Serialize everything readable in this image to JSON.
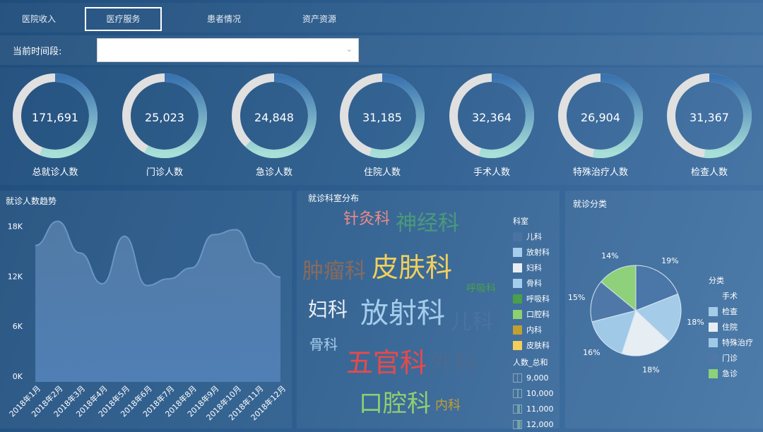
{
  "tabs": [
    {
      "label": "医院收入"
    },
    {
      "label": "医疗服务",
      "active": true
    },
    {
      "label": "患者情况"
    },
    {
      "label": "资产资源"
    }
  ],
  "filter": {
    "label": "当前时间段:",
    "value": ""
  },
  "kpis": [
    {
      "label": "总就诊人数",
      "value": "171,691",
      "fill": 0.56
    },
    {
      "label": "门诊人数",
      "value": "25,023",
      "fill": 0.58
    },
    {
      "label": "急诊人数",
      "value": "24,848",
      "fill": 0.62
    },
    {
      "label": "住院人数",
      "value": "31,185",
      "fill": 0.55
    },
    {
      "label": "手术人数",
      "value": "32,364",
      "fill": 0.55
    },
    {
      "label": "特殊治疗人数",
      "value": "26,904",
      "fill": 0.53
    },
    {
      "label": "检查人数",
      "value": "31,367",
      "fill": 0.52
    }
  ],
  "colors": {
    "ring_track": "#e0e0e0",
    "ring_start": "#3a73b0",
    "ring_end": "#a8e0d8",
    "area": "#4f7fb5"
  },
  "trend": {
    "title": "就诊人数趋势"
  },
  "chart_data": [
    {
      "type": "area",
      "title": "就诊人数趋势",
      "categories": [
        "2018年1月",
        "2018年2月",
        "2018年3月",
        "2018年4月",
        "2018年5月",
        "2018年6月",
        "2018年7月",
        "2018年8月",
        "2018年9月",
        "2018年10月",
        "2018年11月",
        "2018年12月"
      ],
      "values": [
        15700,
        18600,
        14800,
        11100,
        16800,
        10900,
        11700,
        13000,
        17000,
        17600,
        13600,
        11900
      ],
      "yticks": [
        "0K",
        "6K",
        "12K",
        "18K"
      ],
      "ylim": [
        0,
        18000
      ]
    },
    {
      "type": "pie",
      "title": "就诊分类",
      "legend_title": "分类",
      "legend": "right",
      "slices": [
        {
          "name": "手术",
          "value": 19,
          "label": "19%",
          "color": "#4a76a8"
        },
        {
          "name": "检查",
          "value": 18,
          "label": "18%",
          "color": "#a4cbe8"
        },
        {
          "name": "住院",
          "value": 18,
          "label": "18%",
          "color": "#e6eef4"
        },
        {
          "name": "特殊治疗",
          "value": 16,
          "label": "16%",
          "color": "#a0c9e8"
        },
        {
          "name": "门诊",
          "value": 15,
          "label": "15%",
          "color": "#4f78a8"
        },
        {
          "name": "急诊",
          "value": 14,
          "label": "14%",
          "color": "#8fd07a"
        }
      ]
    }
  ],
  "wordcloud": {
    "title": "就诊科室分布",
    "words": [
      {
        "text": "针灸科",
        "color": "#f08a8a"
      },
      {
        "text": "神经科",
        "color": "#4a9a7a"
      },
      {
        "text": "肿瘤科",
        "color": "#8a6a5a"
      },
      {
        "text": "皮肤科",
        "color": "#f2cf5a"
      },
      {
        "text": "呼吸科",
        "color": "#4aa04a"
      },
      {
        "text": "妇科",
        "color": "#e8eef4"
      },
      {
        "text": "放射科",
        "color": "#a6cdec"
      },
      {
        "text": "儿科",
        "color": "#4a72a2"
      },
      {
        "text": "骨科",
        "color": "#a6cdec"
      },
      {
        "text": "五官科",
        "color": "#e84a4a"
      },
      {
        "text": "外科",
        "color": "#4a6a90"
      },
      {
        "text": "口腔科",
        "color": "#8ed070"
      },
      {
        "text": "内科",
        "color": "#c0a030"
      }
    ],
    "legend_title": "科室",
    "legend": [
      {
        "name": "儿科",
        "color": "#4a72a2"
      },
      {
        "name": "放射科",
        "color": "#a6cdec"
      },
      {
        "name": "妇科",
        "color": "#e8eef4"
      },
      {
        "name": "骨科",
        "color": "#a6cdec"
      },
      {
        "name": "呼吸科",
        "color": "#4aa04a"
      },
      {
        "name": "口腔科",
        "color": "#8ed070"
      },
      {
        "name": "内科",
        "color": "#c0a030"
      },
      {
        "name": "皮肤科",
        "color": "#f2cf5a"
      }
    ],
    "size_title": "人数_总和",
    "sizes": [
      {
        "label": "9,000",
        "level": 0.2
      },
      {
        "label": "10,000",
        "level": 0.4
      },
      {
        "label": "11,000",
        "level": 0.6
      },
      {
        "label": "12,000",
        "level": 0.8
      }
    ]
  }
}
